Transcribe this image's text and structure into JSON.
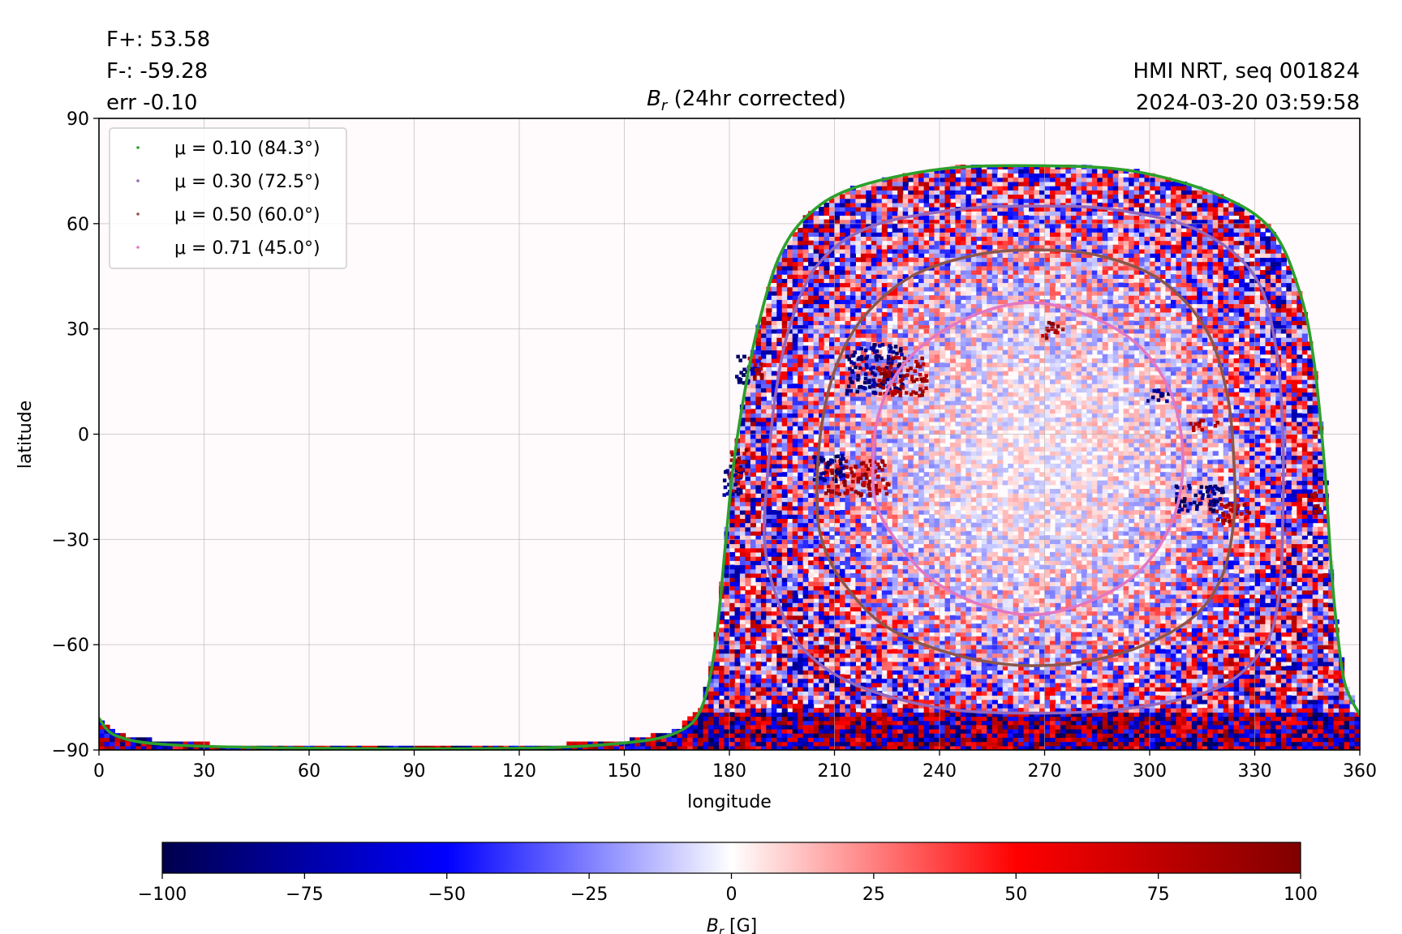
{
  "header": {
    "flux_pos": "F+: 53.58",
    "flux_neg": "F-: -59.28",
    "error": "err -0.10",
    "source": "HMI NRT, seq 001824",
    "timestamp": "2024-03-20 03:59:58"
  },
  "chart_data": {
    "type": "heatmap",
    "title": "B_r (24hr corrected)",
    "title_main": "B",
    "title_sub": "r",
    "title_rest": " (24hr corrected)",
    "xlabel": "longitude",
    "ylabel": "latitude",
    "xlim": [
      0,
      360
    ],
    "ylim": [
      -90,
      90
    ],
    "x_ticks": [
      0,
      30,
      60,
      90,
      120,
      150,
      180,
      210,
      240,
      270,
      300,
      330,
      360
    ],
    "y_ticks": [
      90,
      60,
      30,
      0,
      -30,
      -60,
      -90
    ],
    "y_tick_labels": [
      "90",
      "60",
      "30",
      "0",
      "−30",
      "−60",
      "−90"
    ],
    "grid": true,
    "legend_placement": "top-left",
    "legend": [
      {
        "label": "μ = 0.10 (84.3°)",
        "mu": 0.1,
        "angle_deg": 84.3,
        "color": "#2ca02c"
      },
      {
        "label": "μ = 0.30 (72.5°)",
        "mu": 0.3,
        "angle_deg": 72.5,
        "color": "#9467bd"
      },
      {
        "label": "μ = 0.50 (60.0°)",
        "mu": 0.5,
        "angle_deg": 60.0,
        "color": "#8c564b"
      },
      {
        "label": "μ = 0.71 (45.0°)",
        "mu": 0.71,
        "angle_deg": 45.0,
        "color": "#e377c2"
      }
    ],
    "contours": [
      {
        "mu": 0.1,
        "color": "#2ca02c",
        "disk_center_lon": 267,
        "disk_center_lat": -7,
        "points": [
          [
            0,
            -81
          ],
          [
            5,
            -86
          ],
          [
            20,
            -88.5
          ],
          [
            60,
            -89.5
          ],
          [
            120,
            -89.5
          ],
          [
            150,
            -88
          ],
          [
            165,
            -85
          ],
          [
            172,
            -78
          ],
          [
            176,
            -60
          ],
          [
            179,
            -30
          ],
          [
            181,
            -10
          ],
          [
            184,
            10
          ],
          [
            188,
            30
          ],
          [
            194,
            50
          ],
          [
            202,
            62
          ],
          [
            215,
            70
          ],
          [
            240,
            75.5
          ],
          [
            267,
            76.5
          ],
          [
            295,
            75
          ],
          [
            320,
            68
          ],
          [
            335,
            58
          ],
          [
            343,
            40
          ],
          [
            347,
            20
          ],
          [
            350,
            -10
          ],
          [
            352,
            -40
          ],
          [
            354,
            -60
          ],
          [
            356,
            -72
          ],
          [
            360,
            -80
          ]
        ]
      },
      {
        "mu": 0.3,
        "color": "#9467bd",
        "disk_center_lon": 267,
        "disk_center_lat": -7,
        "points": [
          [
            190,
            -30
          ],
          [
            191,
            -10
          ],
          [
            193,
            10
          ],
          [
            197,
            30
          ],
          [
            205,
            48
          ],
          [
            220,
            59
          ],
          [
            245,
            64
          ],
          [
            267,
            65
          ],
          [
            290,
            64
          ],
          [
            314,
            58
          ],
          [
            330,
            45
          ],
          [
            336,
            25
          ],
          [
            338,
            0
          ],
          [
            338,
            -25
          ],
          [
            337,
            -45
          ],
          [
            333,
            -60
          ],
          [
            320,
            -72
          ],
          [
            295,
            -78
          ],
          [
            267,
            -79.5
          ],
          [
            240,
            -78
          ],
          [
            215,
            -71
          ],
          [
            200,
            -60
          ],
          [
            193,
            -45
          ]
        ]
      },
      {
        "mu": 0.5,
        "color": "#8c564b",
        "disk_center_lon": 267,
        "disk_center_lat": -7,
        "points": [
          [
            205,
            -20
          ],
          [
            206,
            0
          ],
          [
            210,
            18
          ],
          [
            218,
            33
          ],
          [
            232,
            45
          ],
          [
            250,
            51
          ],
          [
            267,
            52.5
          ],
          [
            285,
            51
          ],
          [
            303,
            44
          ],
          [
            316,
            30
          ],
          [
            322,
            12
          ],
          [
            324,
            -7
          ],
          [
            324,
            -25
          ],
          [
            320,
            -42
          ],
          [
            310,
            -54
          ],
          [
            290,
            -63
          ],
          [
            267,
            -66
          ],
          [
            245,
            -63
          ],
          [
            225,
            -55
          ],
          [
            213,
            -43
          ],
          [
            207,
            -32
          ]
        ]
      },
      {
        "mu": 0.71,
        "color": "#e377c2",
        "disk_center_lon": 266,
        "disk_center_lat": -7,
        "points": [
          [
            221,
            -12
          ],
          [
            222,
            3
          ],
          [
            227,
            16
          ],
          [
            236,
            26
          ],
          [
            250,
            34
          ],
          [
            266,
            37.5
          ],
          [
            282,
            34
          ],
          [
            296,
            26
          ],
          [
            305,
            14
          ],
          [
            309,
            0
          ],
          [
            309,
            -15
          ],
          [
            305,
            -28
          ],
          [
            296,
            -40
          ],
          [
            282,
            -48
          ],
          [
            266,
            -51.5
          ],
          [
            250,
            -48
          ],
          [
            236,
            -40
          ],
          [
            226,
            -28
          ],
          [
            222,
            -20
          ]
        ]
      }
    ],
    "active_regions": [
      {
        "lon": 221,
        "lat": 19,
        "w": 16,
        "h": 14,
        "polarity": "negative"
      },
      {
        "lon": 229,
        "lat": 17,
        "w": 14,
        "h": 11,
        "polarity": "positive"
      },
      {
        "lon": 216,
        "lat": -12,
        "w": 18,
        "h": 10,
        "polarity": "positive"
      },
      {
        "lon": 208,
        "lat": -9,
        "w": 9,
        "h": 8,
        "polarity": "negative"
      },
      {
        "lon": 181,
        "lat": -12,
        "w": 6,
        "h": 10,
        "polarity": "negative"
      },
      {
        "lon": 182,
        "lat": -8,
        "w": 5,
        "h": 8,
        "polarity": "positive"
      },
      {
        "lon": 184,
        "lat": 19,
        "w": 6,
        "h": 8,
        "polarity": "negative"
      },
      {
        "lon": 187,
        "lat": 19,
        "w": 4,
        "h": 7,
        "polarity": "positive"
      },
      {
        "lon": 314,
        "lat": -18,
        "w": 14,
        "h": 8,
        "polarity": "negative"
      },
      {
        "lon": 323,
        "lat": -22,
        "w": 10,
        "h": 6,
        "polarity": "positive"
      },
      {
        "lon": 315,
        "lat": 3,
        "w": 8,
        "h": 3,
        "polarity": "positive"
      },
      {
        "lon": 302,
        "lat": 11,
        "w": 6,
        "h": 4,
        "polarity": "negative"
      },
      {
        "lon": 272,
        "lat": 30,
        "w": 6,
        "h": 5,
        "polarity": "positive"
      },
      {
        "lon": 347,
        "lat": -19,
        "w": 3,
        "h": 8,
        "polarity": "positive"
      }
    ],
    "colorbar": {
      "label_main": "B",
      "label_sub": "r",
      "label_rest": " [G]",
      "min": -100,
      "max": 100,
      "colormap": "seismic",
      "ticks": [
        -100,
        -75,
        -50,
        -25,
        0,
        25,
        50,
        75,
        100
      ],
      "tick_labels": [
        "−100",
        "−75",
        "−50",
        "−25",
        "0",
        "25",
        "50",
        "75",
        "100"
      ]
    }
  }
}
